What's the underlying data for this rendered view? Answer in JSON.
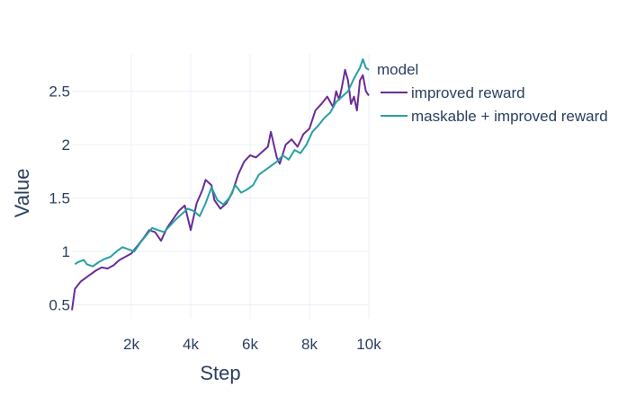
{
  "chart_data": {
    "type": "line",
    "xlabel": "Step",
    "ylabel": "Value",
    "xlim": [
      0,
      10000
    ],
    "ylim": [
      0.37,
      2.85
    ],
    "x_ticks": [
      2000,
      4000,
      6000,
      8000,
      10000
    ],
    "x_tick_labels": [
      "2k",
      "4k",
      "6k",
      "8k",
      "10k"
    ],
    "y_ticks": [
      0.5,
      1,
      1.5,
      2,
      2.5
    ],
    "y_tick_labels": [
      "0.5",
      "1",
      "1.5",
      "2",
      "2.5"
    ],
    "grid": true,
    "legend": {
      "title": "model",
      "position": "right"
    },
    "series": [
      {
        "name": "improved reward",
        "color": "#6a2c96",
        "x": [
          0,
          100,
          300,
          600,
          800,
          1000,
          1200,
          1400,
          1600,
          1800,
          2000,
          2200,
          2400,
          2600,
          2800,
          3000,
          3200,
          3400,
          3600,
          3800,
          4000,
          4200,
          4400,
          4500,
          4700,
          4800,
          5000,
          5200,
          5400,
          5600,
          5800,
          6000,
          6200,
          6400,
          6600,
          6700,
          6900,
          7000,
          7200,
          7400,
          7600,
          7800,
          8000,
          8200,
          8400,
          8600,
          8800,
          8900,
          9000,
          9100,
          9200,
          9300,
          9400,
          9500,
          9600,
          9700,
          9800,
          9900,
          10000
        ],
        "y": [
          0.45,
          0.65,
          0.72,
          0.78,
          0.82,
          0.85,
          0.84,
          0.87,
          0.92,
          0.95,
          0.98,
          1.05,
          1.12,
          1.2,
          1.18,
          1.1,
          1.22,
          1.3,
          1.38,
          1.43,
          1.2,
          1.45,
          1.58,
          1.67,
          1.62,
          1.48,
          1.4,
          1.45,
          1.55,
          1.72,
          1.84,
          1.9,
          1.88,
          1.93,
          1.98,
          2.12,
          1.88,
          1.82,
          2.0,
          2.05,
          1.98,
          2.1,
          2.15,
          2.32,
          2.38,
          2.45,
          2.35,
          2.5,
          2.42,
          2.55,
          2.7,
          2.6,
          2.38,
          2.45,
          2.32,
          2.6,
          2.65,
          2.5,
          2.46
        ]
      },
      {
        "name": "maskable + improved reward",
        "color": "#27a0a4",
        "x": [
          100,
          200,
          400,
          500,
          700,
          900,
          1100,
          1300,
          1500,
          1700,
          1900,
          2100,
          2300,
          2500,
          2700,
          2900,
          3100,
          3300,
          3500,
          3700,
          3900,
          4100,
          4300,
          4500,
          4700,
          4900,
          5100,
          5300,
          5500,
          5700,
          5900,
          6100,
          6300,
          6500,
          6700,
          6900,
          7100,
          7300,
          7500,
          7700,
          7900,
          8100,
          8300,
          8500,
          8700,
          8900,
          9100,
          9300,
          9500,
          9700,
          9800,
          9900,
          10000
        ],
        "y": [
          0.88,
          0.9,
          0.92,
          0.88,
          0.86,
          0.9,
          0.93,
          0.95,
          1.0,
          1.04,
          1.02,
          1.0,
          1.08,
          1.15,
          1.22,
          1.2,
          1.18,
          1.24,
          1.3,
          1.35,
          1.4,
          1.38,
          1.33,
          1.45,
          1.6,
          1.48,
          1.44,
          1.5,
          1.62,
          1.55,
          1.58,
          1.62,
          1.72,
          1.76,
          1.8,
          1.84,
          1.9,
          1.86,
          1.95,
          1.92,
          2.0,
          2.12,
          2.18,
          2.25,
          2.3,
          2.4,
          2.45,
          2.5,
          2.62,
          2.72,
          2.8,
          2.72,
          2.7
        ]
      }
    ]
  }
}
